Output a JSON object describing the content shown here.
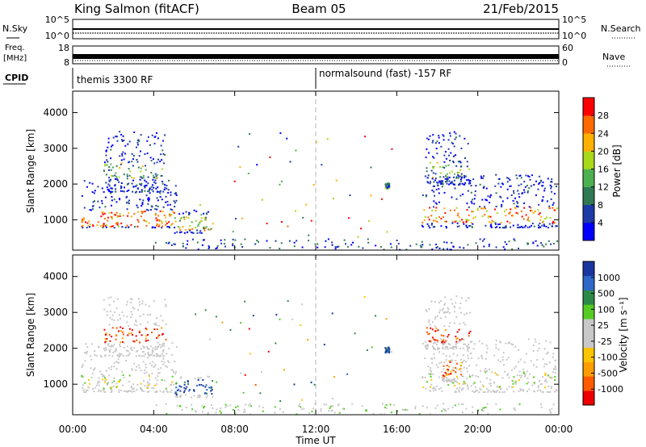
{
  "header": {
    "station": "King Salmon (fitACF)",
    "beam": "Beam 05",
    "date": "21/Feb/2015"
  },
  "nsky_panel": {
    "left_label": "N.Sky",
    "right_label": "N.Search",
    "left_ticks": [
      "10^5",
      "10^0"
    ],
    "right_ticks": [
      "10^5",
      "10^0"
    ]
  },
  "freq_panel": {
    "left_label_line1": "Freq.",
    "left_label_line2": "[MHz]",
    "right_label": "Nave",
    "left_ticks": [
      "18",
      "8"
    ],
    "right_ticks": [
      "60",
      "0"
    ]
  },
  "cpid_panel": {
    "label": "CPID",
    "segments": [
      {
        "name": "themis 3300 RF",
        "start_hour": 0
      },
      {
        "name": "normalsound (fast) -157 RF",
        "start_hour": 12
      }
    ]
  },
  "colors": {
    "power": [
      "#0000ff",
      "#1e3aa8",
      "#2f7a52",
      "#4caf50",
      "#a8d818",
      "#ffb000",
      "#ff6a00",
      "#ff0000"
    ],
    "velocity": [
      "#ee0000",
      "#ff5a00",
      "#ff9c00",
      "#ffc400",
      "#c8c8c8",
      "#c8c8c8",
      "#55cc22",
      "#2c8a48",
      "#2f68c8",
      "#1a35a0"
    ],
    "grid_dash": "#b4b4b4"
  },
  "chart_data": [
    {
      "type": "heatmap",
      "name": "power",
      "ylabel": "Slant Range [km]",
      "yticks": [
        1000,
        2000,
        3000,
        4000
      ],
      "ylim": [
        150,
        4600
      ],
      "xlim": [
        0,
        24
      ],
      "colorbar": {
        "label": "Power [dB]",
        "ticks": [
          "4",
          "8",
          "12",
          "16",
          "20",
          "24",
          "28"
        ],
        "range": [
          0,
          32
        ]
      },
      "regions": [
        {
          "t0": 0.4,
          "t1": 5.1,
          "r0": 800,
          "r1": 2200,
          "core": 1050,
          "level": 0.55
        },
        {
          "t0": 1.5,
          "t1": 4.6,
          "r0": 1800,
          "r1": 3500,
          "core": 2400,
          "level": 0.15
        },
        {
          "t0": 5.0,
          "t1": 6.9,
          "r0": 650,
          "r1": 1300,
          "core": 950,
          "level": 0.3
        },
        {
          "t0": 15.4,
          "t1": 15.6,
          "r0": 1900,
          "r1": 2050,
          "core": 1970,
          "level": 0.1
        },
        {
          "t0": 17.2,
          "t1": 23.9,
          "r0": 800,
          "r1": 2300,
          "core": 1150,
          "level": 0.5
        },
        {
          "t0": 17.4,
          "t1": 19.6,
          "r0": 2000,
          "r1": 3500,
          "core": 2400,
          "level": 0.15
        }
      ]
    },
    {
      "type": "heatmap",
      "name": "velocity",
      "ylabel": "Slant Range [km]",
      "xlabel": "Time UT",
      "yticks": [
        1000,
        2000,
        3000,
        4000
      ],
      "ylim": [
        150,
        4600
      ],
      "xlim": [
        0,
        24
      ],
      "xticks": [
        "00:00",
        "04:00",
        "08:00",
        "12:00",
        "16:00",
        "20:00",
        "00:00"
      ],
      "xtick_hours": [
        0,
        4,
        8,
        12,
        16,
        20,
        24
      ],
      "colorbar": {
        "label": "Velocity [m s⁻¹]",
        "ticks": [
          "-1000",
          "-500",
          "-100",
          "-25",
          "25",
          "100",
          "500",
          "1000"
        ],
        "range": [
          -1200,
          1200
        ]
      },
      "regions": [
        {
          "t0": 0.4,
          "t1": 5.1,
          "r0": 800,
          "r1": 2200,
          "core": 1100,
          "level": 0.5
        },
        {
          "t0": 1.5,
          "t1": 4.6,
          "r0": 1800,
          "r1": 3500,
          "core": 2400,
          "level": 0.1
        },
        {
          "t0": 5.0,
          "t1": 6.9,
          "r0": 650,
          "r1": 1300,
          "core": 950,
          "level": 0.9
        },
        {
          "t0": 15.4,
          "t1": 15.6,
          "r0": 1900,
          "r1": 2050,
          "core": 1970,
          "level": 0.9
        },
        {
          "t0": 17.2,
          "t1": 23.9,
          "r0": 800,
          "r1": 2300,
          "core": 1150,
          "level": 0.5
        },
        {
          "t0": 18.2,
          "t1": 19.2,
          "r0": 1100,
          "r1": 1800,
          "core": 1450,
          "level": 0.2
        },
        {
          "t0": 17.4,
          "t1": 19.6,
          "r0": 2000,
          "r1": 3500,
          "core": 2400,
          "level": 0.1
        }
      ]
    }
  ]
}
